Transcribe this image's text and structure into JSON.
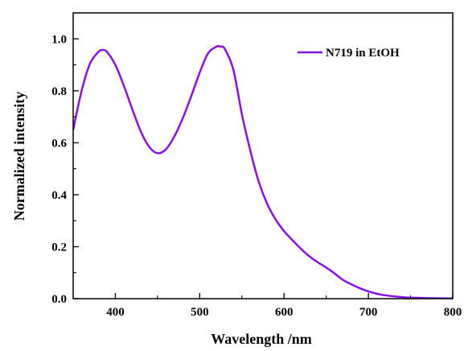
{
  "chart_data": {
    "type": "line",
    "xlabel": "Wavelength /nm",
    "ylabel": "Normalized intensity",
    "xlim": [
      350,
      800
    ],
    "ylim": [
      0.0,
      1.1
    ],
    "x_ticks": [
      400,
      500,
      600,
      700,
      800
    ],
    "x_tick_labels": [
      "400",
      "500",
      "600",
      "700",
      "800"
    ],
    "y_ticks": [
      0.0,
      0.2,
      0.4,
      0.6,
      0.8,
      1.0
    ],
    "y_tick_labels": [
      "0.0",
      "0.2",
      "0.4",
      "0.6",
      "0.8",
      "1.0"
    ],
    "grid": false,
    "legend_position": "top-right",
    "series": [
      {
        "name": "N719 in EtOH",
        "color": "#8a10e8",
        "x": [
          350,
          360,
          370,
          380,
          385,
          390,
          400,
          410,
          420,
          430,
          440,
          450,
          460,
          470,
          480,
          490,
          500,
          510,
          520,
          525,
          530,
          540,
          550,
          560,
          570,
          580,
          590,
          600,
          610,
          620,
          630,
          640,
          650,
          660,
          670,
          680,
          690,
          700,
          710,
          720,
          730,
          740,
          750,
          760,
          770,
          780,
          790,
          800
        ],
        "y": [
          0.65,
          0.8,
          0.905,
          0.95,
          0.957,
          0.95,
          0.9,
          0.82,
          0.73,
          0.645,
          0.585,
          0.56,
          0.575,
          0.625,
          0.695,
          0.78,
          0.87,
          0.945,
          0.97,
          0.97,
          0.96,
          0.88,
          0.71,
          0.57,
          0.45,
          0.365,
          0.305,
          0.26,
          0.225,
          0.192,
          0.163,
          0.14,
          0.12,
          0.097,
          0.072,
          0.055,
          0.04,
          0.028,
          0.019,
          0.013,
          0.009,
          0.006,
          0.004,
          0.003,
          0.002,
          0.0015,
          0.001,
          0.001
        ]
      }
    ]
  }
}
